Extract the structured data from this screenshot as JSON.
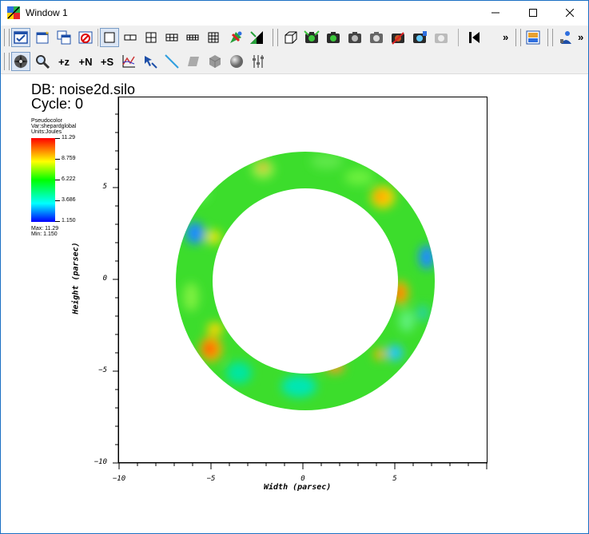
{
  "window": {
    "title": "Window 1",
    "minimize": "—",
    "maximize": "☐",
    "close": "✕"
  },
  "toolbar1": {
    "overflow_label": "»",
    "overflow2_label": "»"
  },
  "toolbar2": {
    "zoom_x_label": "+z",
    "zoom_n_label": "+N",
    "zoom_s_label": "+S"
  },
  "viewport": {
    "db_label": "DB: noise2d.silo",
    "cycle_label": "Cycle: 0",
    "legend": {
      "plot_type": "Pseudocolor",
      "var": "Var:shepardglobal",
      "units": "Units:Joules",
      "ticks": [
        "11.29",
        "8.759",
        "6.222",
        "3.686",
        "1.150"
      ],
      "max": "Max: 11.29",
      "min": "Min: 1.150"
    },
    "x_axis_label": "Width (parsec)",
    "y_axis_label": "Height (parsec)",
    "x_ticks": [
      "−10",
      "−5",
      "0",
      "5"
    ],
    "y_ticks": [
      "5",
      "0",
      "−5",
      "−10"
    ]
  },
  "colors": {
    "accent": "#1a6fc4",
    "plot_fill": "#3cdd2c"
  }
}
